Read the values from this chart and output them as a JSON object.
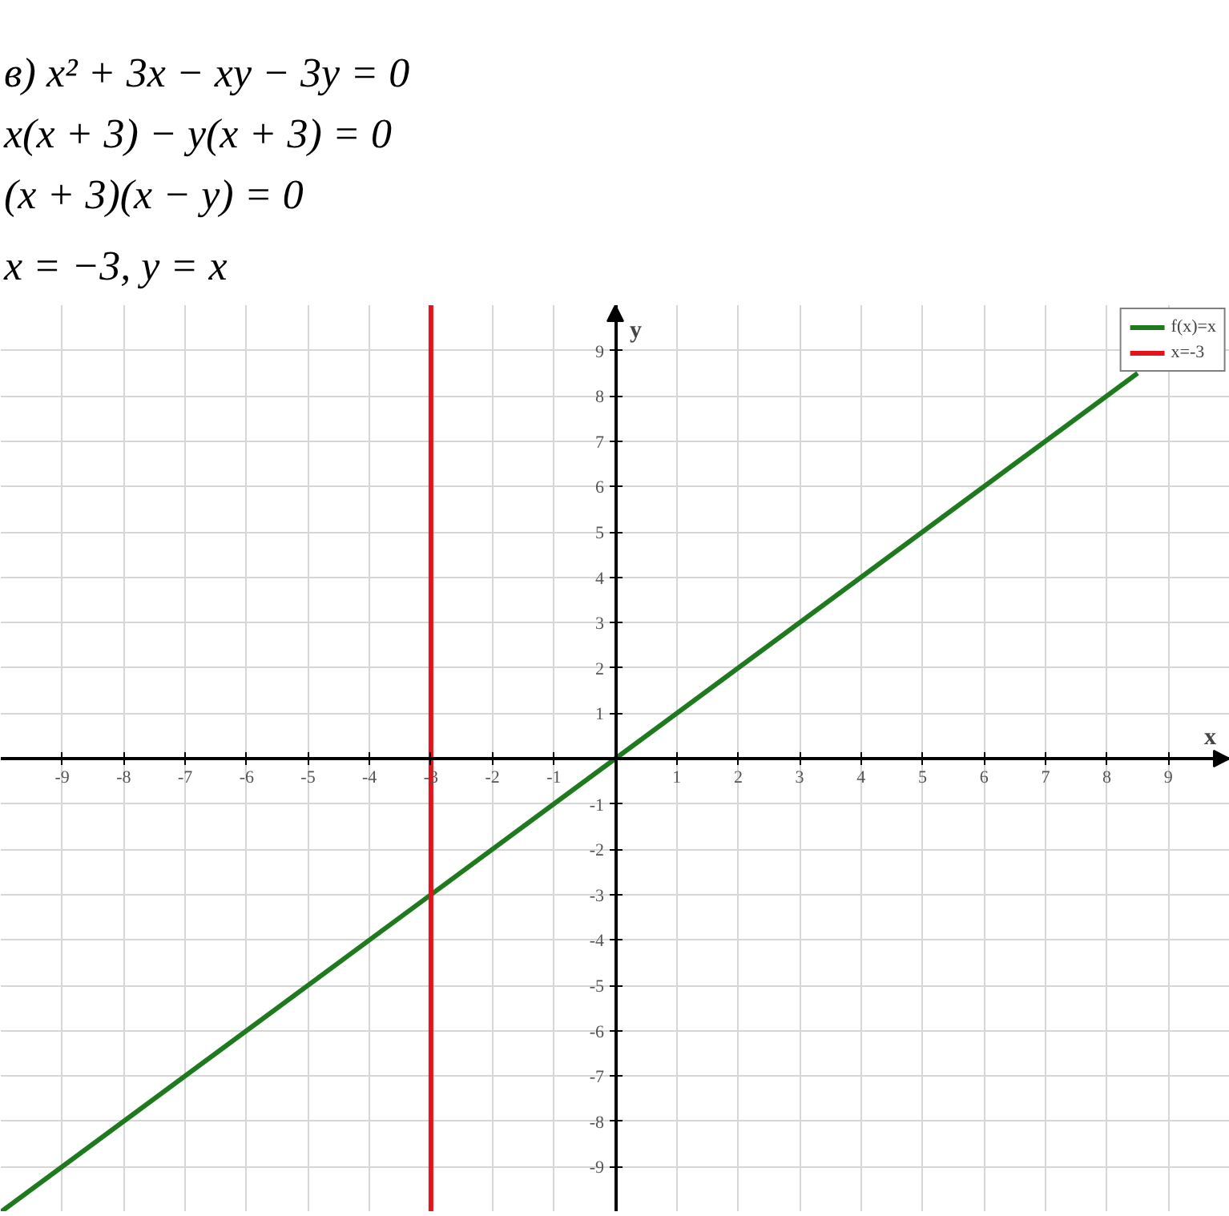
{
  "chart_data": {
    "type": "line",
    "annotations": [
      "в) x² + 3x − xy − 3y = 0",
      "x(x + 3) − y(x + 3) = 0",
      "(x + 3)(x − y) = 0",
      "x = −3,       y = x"
    ],
    "xlabel": "x",
    "ylabel": "y",
    "series": [
      {
        "name": "f(x)=x",
        "color": "#1f7a1f",
        "x": [
          -10,
          8.5
        ],
        "values": [
          -10,
          8.5
        ]
      },
      {
        "name": "x=-3",
        "color": "#e3141b",
        "x": [
          -3,
          -3
        ],
        "values": [
          -10,
          10
        ]
      }
    ],
    "xlim": [
      -10,
      10
    ],
    "ylim": [
      -10,
      10
    ],
    "xticks": [
      -9,
      -8,
      -7,
      -6,
      -5,
      -4,
      -3,
      -2,
      -1,
      1,
      2,
      3,
      4,
      5,
      6,
      7,
      8,
      9
    ],
    "yticks": [
      -9,
      -8,
      -7,
      -6,
      -5,
      -4,
      -3,
      -2,
      -1,
      1,
      2,
      3,
      4,
      5,
      6,
      7,
      8,
      9
    ],
    "grid": true,
    "legend": "top right",
    "line_style": "solid"
  }
}
